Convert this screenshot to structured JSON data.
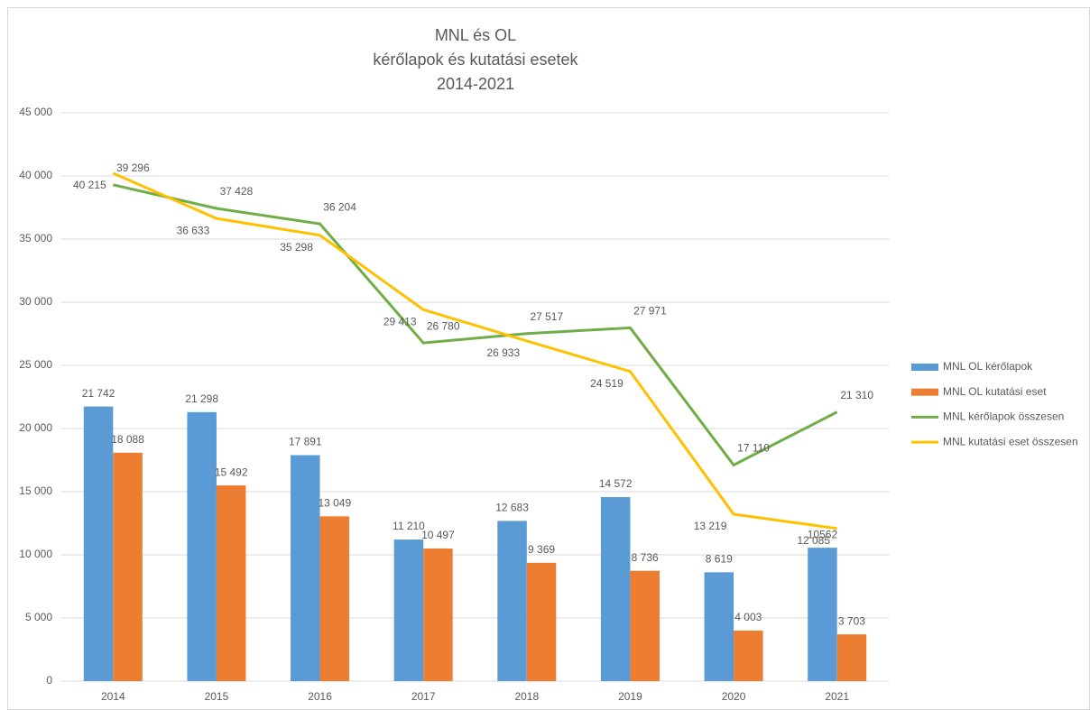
{
  "chart_data": {
    "type": "bar_line",
    "title": [
      "MNL és OL",
      "kérőlapok és kutatási esetek",
      "2014-2021"
    ],
    "categories": [
      "2014",
      "2015",
      "2016",
      "2017",
      "2018",
      "2019",
      "2020",
      "2021"
    ],
    "series": [
      {
        "name": "MNL OL kérőlapok",
        "type": "bar",
        "color": "#5b9bd5",
        "values": [
          21742,
          21298,
          17891,
          11210,
          12683,
          14572,
          8619,
          10562
        ],
        "value_labels": [
          "21 742",
          "21 298",
          "17 891",
          "11 210",
          "12 683",
          "14 572",
          "8 619",
          "10562"
        ]
      },
      {
        "name": "MNL OL kutatási eset",
        "type": "bar",
        "color": "#ed7d31",
        "values": [
          18088,
          15492,
          13049,
          10497,
          9369,
          8736,
          4003,
          3703
        ],
        "value_labels": [
          "18 088",
          "15 492",
          "13 049",
          "10 497",
          "9 369",
          "8 736",
          "4 003",
          "3 703"
        ]
      },
      {
        "name": "MNL kérőlapok összesen",
        "type": "line",
        "color": "#70ad47",
        "values": [
          39296,
          37428,
          36204,
          26780,
          27517,
          27971,
          17110,
          21310
        ],
        "value_labels": [
          "39 296",
          "37 428",
          "36 204",
          "26 780",
          "27 517",
          "27 971",
          "17 110",
          "21 310"
        ]
      },
      {
        "name": "MNL kutatási eset összesen",
        "type": "line",
        "color": "#ffc000",
        "values": [
          40215,
          36633,
          35298,
          29413,
          26933,
          24519,
          13219,
          12085
        ],
        "value_labels": [
          "40 215",
          "36 633",
          "35 298",
          "29 413",
          "26 933",
          "24 519",
          "13 219",
          "12 085"
        ]
      }
    ],
    "ylim": [
      0,
      45000
    ],
    "yticks": [
      0,
      {
        "value": 5000,
        "label": "5 000"
      },
      {
        "value": 10000,
        "label": "10 000"
      },
      {
        "value": 15000,
        "label": "15 000"
      },
      {
        "value": 20000,
        "label": "20 000"
      },
      {
        "value": 25000,
        "label": "25 000"
      },
      {
        "value": 30000,
        "label": "30 000"
      },
      {
        "value": 35000,
        "label": "35 000"
      },
      {
        "value": 40000,
        "label": "40 000"
      },
      {
        "value": 45000,
        "label": "45 000"
      }
    ],
    "grid": true,
    "legend": "right"
  }
}
